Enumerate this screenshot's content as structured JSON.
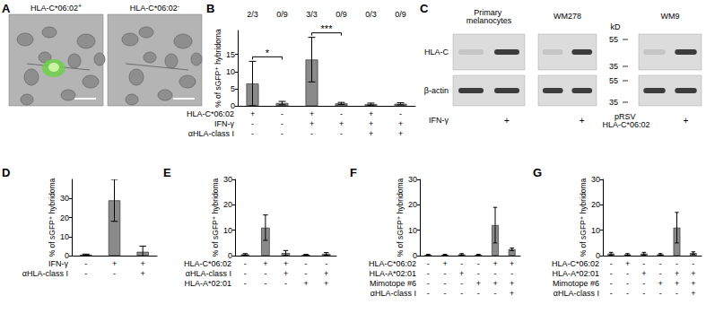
{
  "images": {
    "panel": "A",
    "items": [
      {
        "label": "HLA-C*06:02",
        "sign": "+",
        "fluorescent": true
      },
      {
        "label": "HLA-C*06:02",
        "sign": "-",
        "fluorescent": false
      }
    ]
  },
  "blot": {
    "panel": "C",
    "rows": [
      "HLA-C",
      "β-actin"
    ],
    "markers": {
      "unit": "kD",
      "values": [
        55,
        35
      ]
    },
    "condition_label": "IFN-γ",
    "groups": [
      {
        "name": "Primary melanocytes",
        "lanes": [
          null,
          "+"
        ]
      },
      {
        "name": "WM278",
        "lanes": [
          null,
          "+"
        ]
      },
      {
        "name": "WM9",
        "label": "pRSV HLA-C*06:02",
        "lanes": [
          null,
          "+"
        ]
      }
    ]
  },
  "chart_data": [
    {
      "type": "bar",
      "panel": "B",
      "ylabel": "% of sGFP⁺ hybridoma",
      "color": "#8a8a8a",
      "grid": false,
      "values": [
        6.5,
        0.8,
        13.5,
        0.7,
        0.5,
        0.6
      ],
      "errors": [
        6.5,
        0.5,
        6.5,
        0.3,
        0.3,
        0.3
      ],
      "ylim": [
        0,
        22
      ],
      "yticks": [
        0,
        5,
        10,
        15
      ],
      "fractions": [
        "2/3",
        "0/9",
        "3/3",
        "0/9",
        "0/3",
        "0/9"
      ],
      "significance": [
        {
          "from": 0,
          "to": 1,
          "label": "*"
        },
        {
          "from": 2,
          "to": 3,
          "label": "***"
        }
      ],
      "conditions": [
        {
          "label": "HLA-C*06:02",
          "signs": [
            "+",
            "-",
            "+",
            "-",
            "+",
            "-"
          ]
        },
        {
          "label": "IFN-γ",
          "signs": [
            "-",
            "-",
            "+",
            "+",
            "+",
            "+"
          ]
        },
        {
          "label": "αHLA-class I",
          "signs": [
            "-",
            "-",
            "-",
            "-",
            "+",
            "+"
          ]
        }
      ]
    },
    {
      "type": "bar",
      "panel": "D",
      "ylabel": "% of sGFP⁺ hybridoma",
      "color": "#8a8a8a",
      "grid": false,
      "values": [
        0.5,
        29,
        2
      ],
      "errors": [
        0.3,
        11,
        3
      ],
      "ylim": [
        0,
        40
      ],
      "yticks": [
        0,
        10,
        20,
        30
      ],
      "conditions": [
        {
          "label": "IFN-γ",
          "signs": [
            "-",
            "+",
            "+"
          ]
        },
        {
          "label": "αHLA-class I",
          "signs": [
            "-",
            "-",
            "+"
          ]
        }
      ]
    },
    {
      "type": "bar",
      "panel": "E",
      "ylabel": "% of sGFP⁺ hybridoma",
      "color": "#8a8a8a",
      "grid": false,
      "values": [
        0.5,
        11,
        1,
        0.3,
        0.7
      ],
      "errors": [
        0.3,
        5,
        1,
        0.2,
        0.5
      ],
      "ylim": [
        0,
        30
      ],
      "yticks": [
        0,
        10,
        20,
        30
      ],
      "conditions": [
        {
          "label": "HLA-C*06:02",
          "signs": [
            "-",
            "+",
            "+",
            "-",
            "-"
          ]
        },
        {
          "label": "αHLA-class I",
          "signs": [
            "-",
            "-",
            "+",
            "-",
            "+"
          ]
        },
        {
          "label": "HLA-A*02:01",
          "signs": [
            "-",
            "-",
            "-",
            "+",
            "+"
          ]
        }
      ]
    },
    {
      "type": "bar",
      "panel": "F",
      "ylabel": "% of sGFP⁺ hybridoma",
      "color": "#8a8a8a",
      "grid": false,
      "values": [
        0.3,
        0.3,
        0.5,
        0.3,
        12,
        2.5
      ],
      "errors": [
        0.2,
        0.2,
        0.3,
        0.2,
        7,
        0.5
      ],
      "ylim": [
        0,
        30
      ],
      "yticks": [
        0,
        10,
        20,
        30
      ],
      "conditions": [
        {
          "label": "HLA-C*06:02",
          "signs": [
            "-",
            "+",
            "-",
            "-",
            "+",
            "+"
          ]
        },
        {
          "label": "HLA-A*02:01",
          "signs": [
            "-",
            "-",
            "+",
            "-",
            "-",
            "-"
          ]
        },
        {
          "label": "Mimotope #6",
          "signs": [
            "-",
            "-",
            "-",
            "+",
            "+",
            "+"
          ]
        },
        {
          "label": "αHLA-class I",
          "signs": [
            "-",
            "-",
            "-",
            "-",
            "-",
            "+"
          ]
        }
      ]
    },
    {
      "type": "bar",
      "panel": "G",
      "ylabel": "% of sGFP⁺ hybridoma",
      "color": "#8a8a8a",
      "grid": false,
      "values": [
        0.8,
        0.5,
        0.8,
        0.5,
        11,
        1
      ],
      "errors": [
        0.5,
        0.3,
        0.5,
        0.3,
        6,
        0.5
      ],
      "ylim": [
        0,
        30
      ],
      "yticks": [
        0,
        10,
        20,
        30
      ],
      "conditions": [
        {
          "label": "HLA-C*06:02",
          "signs": [
            "-",
            "+",
            "-",
            "-",
            "-",
            "-"
          ]
        },
        {
          "label": "HLA-A*02:01",
          "signs": [
            "-",
            "-",
            "+",
            "-",
            "+",
            "+"
          ]
        },
        {
          "label": "Mimotope #6",
          "signs": [
            "-",
            "-",
            "-",
            "+",
            "+",
            "+"
          ]
        },
        {
          "label": "αHLA-class I",
          "signs": [
            "-",
            "-",
            "-",
            "-",
            "-",
            "+"
          ]
        }
      ]
    }
  ]
}
